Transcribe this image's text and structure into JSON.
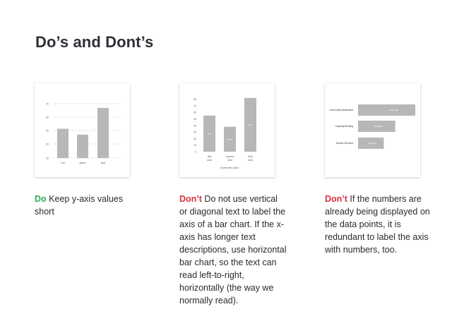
{
  "page": {
    "title": "Do’s and Dont’s"
  },
  "colors": {
    "do": "#2eaa57",
    "dont": "#d7323d",
    "bar": "#b7b7b9",
    "grid": "#e7e7e7"
  },
  "cards": [
    {
      "lead": "Do",
      "text": "Keep y-axis values short",
      "chart_data": {
        "type": "bar",
        "categories": [
          "red",
          "green",
          "blue"
        ],
        "values": [
          45,
          38,
          70
        ],
        "yticks": [
          "70",
          "60",
          "40",
          "20",
          "10"
        ],
        "ylim": [
          10,
          75
        ],
        "grid": true
      }
    },
    {
      "lead": "Don’t",
      "text": "Do not use vertical or diagonal text to label the axis of a bar chart. If the x-axis has longer text descriptions, use horizontal bar chart, so the text can read left-to-right, horizontally (the way we normally read).",
      "chart_data": {
        "type": "bar",
        "categories": [
          "first color",
          "second color",
          "third color"
        ],
        "values": [
          55,
          38,
          82
        ],
        "data_labels": [
          "red",
          "green",
          "blue"
        ],
        "yticks": [
          "80",
          "70",
          "60",
          "50",
          "40",
          "30",
          "20",
          "10",
          "0"
        ],
        "ylim": [
          0,
          85
        ],
        "xlabel": "my favorite colors",
        "grid": false
      }
    },
    {
      "lead": "Don’t",
      "text": "If the numbers are already being displayed on the data points, it is redundant to label the axis with numbers, too.",
      "chart_data": {
        "type": "bar",
        "orientation": "horizontal",
        "categories": [
          "Community Betterment",
          "Capacity Building",
          "Human Services"
        ],
        "values": [
          1000000,
          650000,
          450000
        ],
        "data_labels": [
          "1,000,000",
          "650,000",
          "450,000"
        ],
        "grid": false
      }
    }
  ]
}
